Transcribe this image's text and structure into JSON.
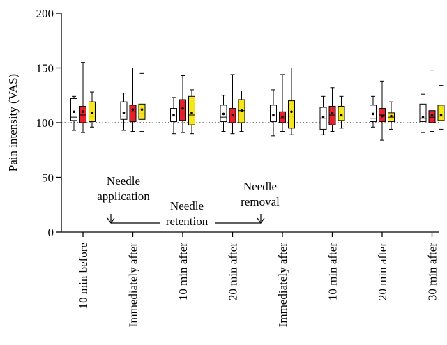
{
  "chart_data": {
    "type": "box",
    "ylabel": "Pain intensity (VAS)",
    "ylim": [
      0,
      200
    ],
    "yticks": [
      0,
      50,
      100,
      150,
      200
    ],
    "reference_line": 100,
    "categories": [
      "10 min before",
      "Immediately after",
      "10 min after",
      "20 min after",
      "Immediately after",
      "10 min after",
      "20 min after",
      "30 min after"
    ],
    "series": [
      {
        "color": "#ffffff",
        "boxes": [
          {
            "min": 93,
            "q1": 102,
            "median": 105,
            "q3": 122,
            "max": 124,
            "mean": 110
          },
          {
            "min": 93,
            "q1": 103,
            "median": 106,
            "q3": 119,
            "max": 127,
            "mean": 109
          },
          {
            "min": 90,
            "q1": 101,
            "median": 106,
            "q3": 113,
            "max": 123,
            "mean": 107
          },
          {
            "min": 92,
            "q1": 101,
            "median": 105,
            "q3": 116,
            "max": 125,
            "mean": 108
          },
          {
            "min": 88,
            "q1": 101,
            "median": 106,
            "q3": 116,
            "max": 130,
            "mean": 107
          },
          {
            "min": 89,
            "q1": 94,
            "median": 104,
            "q3": 114,
            "max": 124,
            "mean": 105
          },
          {
            "min": 96,
            "q1": 101,
            "median": 104,
            "q3": 116,
            "max": 124,
            "mean": 108
          },
          {
            "min": 91,
            "q1": 101,
            "median": 104,
            "q3": 117,
            "max": 126,
            "mean": 105
          }
        ]
      },
      {
        "color": "#e8202a",
        "boxes": [
          {
            "min": 91,
            "q1": 100,
            "median": 107,
            "q3": 115,
            "max": 155,
            "mean": 110
          },
          {
            "min": 92,
            "q1": 101,
            "median": 110,
            "q3": 116,
            "max": 150,
            "mean": 112
          },
          {
            "min": 91,
            "q1": 102,
            "median": 108,
            "q3": 121,
            "max": 143,
            "mean": 113
          },
          {
            "min": 90,
            "q1": 100,
            "median": 106,
            "q3": 113,
            "max": 144,
            "mean": 107
          },
          {
            "min": 92,
            "q1": 100,
            "median": 104,
            "q3": 110,
            "max": 144,
            "mean": 105
          },
          {
            "min": 92,
            "q1": 98,
            "median": 107,
            "q3": 115,
            "max": 132,
            "mean": 109
          },
          {
            "min": 84,
            "q1": 101,
            "median": 107,
            "q3": 113,
            "max": 138,
            "mean": 106
          },
          {
            "min": 92,
            "q1": 100,
            "median": 105,
            "q3": 111,
            "max": 148,
            "mean": 107
          }
        ]
      },
      {
        "color": "#f5e51c",
        "boxes": [
          {
            "min": 96,
            "q1": 101,
            "median": 106,
            "q3": 119,
            "max": 128,
            "mean": 109
          },
          {
            "min": 92,
            "q1": 103,
            "median": 108,
            "q3": 117,
            "max": 145,
            "mean": 112
          },
          {
            "min": 90,
            "q1": 98,
            "median": 107,
            "q3": 124,
            "max": 130,
            "mean": 109
          },
          {
            "min": 92,
            "q1": 100,
            "median": 111,
            "q3": 121,
            "max": 129,
            "mean": 111
          },
          {
            "min": 89,
            "q1": 95,
            "median": 106,
            "q3": 120,
            "max": 150,
            "mean": 110
          },
          {
            "min": 95,
            "q1": 102,
            "median": 106,
            "q3": 115,
            "max": 124,
            "mean": 107
          },
          {
            "min": 94,
            "q1": 101,
            "median": 105,
            "q3": 109,
            "max": 119,
            "mean": 106
          },
          {
            "min": 94,
            "q1": 102,
            "median": 106,
            "q3": 116,
            "max": 134,
            "mean": 107
          }
        ]
      }
    ]
  },
  "annotations": {
    "needle_application": [
      "Needle",
      "application"
    ],
    "needle_retention": [
      "Needle",
      "retention"
    ],
    "needle_removal": [
      "Needle",
      "removal"
    ]
  }
}
